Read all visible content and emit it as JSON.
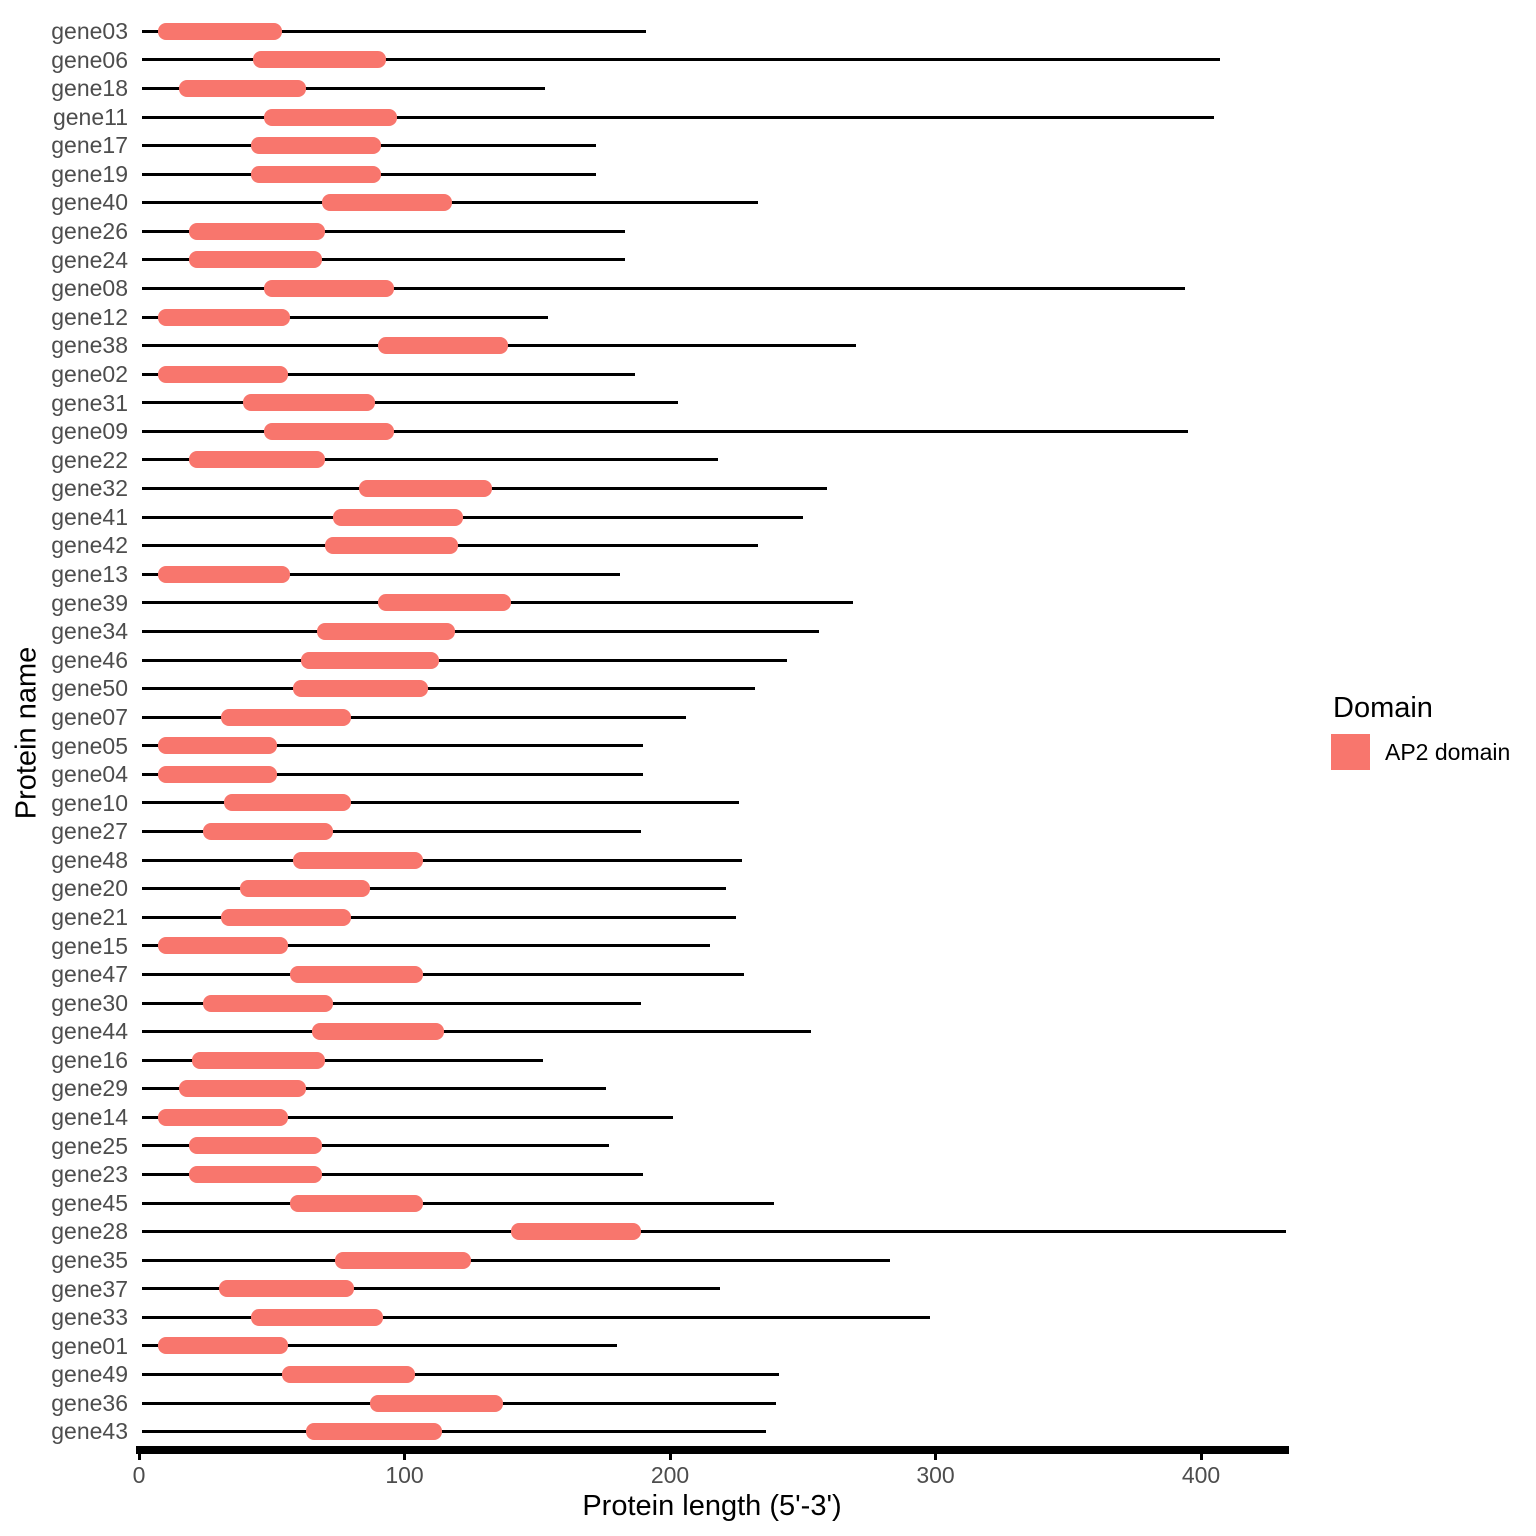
{
  "chart_data": {
    "type": "bar",
    "subtype": "protein-domain-ranges",
    "title": "",
    "xlabel": "Protein length (5'-3')",
    "ylabel": "Protein name",
    "xlim": [
      0,
      432
    ],
    "x_ticks": [
      0,
      100,
      200,
      300,
      400
    ],
    "grid": "off",
    "legend_position": "right",
    "legend_title": "Domain",
    "series": [
      {
        "name": "AP2 domain",
        "color": "#F8766D"
      }
    ],
    "chain_color": "#000000",
    "axis_line_color": "#000000",
    "axis_text_color": "#4D4D4D",
    "chain_start": 1,
    "proteins": [
      {
        "name": "gene03",
        "length": 191,
        "domain": {
          "name": "AP2 domain",
          "start": 7,
          "end": 54
        }
      },
      {
        "name": "gene06",
        "length": 407,
        "domain": {
          "name": "AP2 domain",
          "start": 43,
          "end": 93
        }
      },
      {
        "name": "gene18",
        "length": 153,
        "domain": {
          "name": "AP2 domain",
          "start": 15,
          "end": 63
        }
      },
      {
        "name": "gene11",
        "length": 405,
        "domain": {
          "name": "AP2 domain",
          "start": 47,
          "end": 97
        }
      },
      {
        "name": "gene17",
        "length": 172,
        "domain": {
          "name": "AP2 domain",
          "start": 42,
          "end": 91
        }
      },
      {
        "name": "gene19",
        "length": 172,
        "domain": {
          "name": "AP2 domain",
          "start": 42,
          "end": 91
        }
      },
      {
        "name": "gene40",
        "length": 233,
        "domain": {
          "name": "AP2 domain",
          "start": 69,
          "end": 118
        }
      },
      {
        "name": "gene26",
        "length": 183,
        "domain": {
          "name": "AP2 domain",
          "start": 19,
          "end": 70
        }
      },
      {
        "name": "gene24",
        "length": 183,
        "domain": {
          "name": "AP2 domain",
          "start": 19,
          "end": 69
        }
      },
      {
        "name": "gene08",
        "length": 394,
        "domain": {
          "name": "AP2 domain",
          "start": 47,
          "end": 96
        }
      },
      {
        "name": "gene12",
        "length": 154,
        "domain": {
          "name": "AP2 domain",
          "start": 7,
          "end": 57
        }
      },
      {
        "name": "gene38",
        "length": 270,
        "domain": {
          "name": "AP2 domain",
          "start": 90,
          "end": 139
        }
      },
      {
        "name": "gene02",
        "length": 187,
        "domain": {
          "name": "AP2 domain",
          "start": 7,
          "end": 56
        }
      },
      {
        "name": "gene31",
        "length": 203,
        "domain": {
          "name": "AP2 domain",
          "start": 39,
          "end": 89
        }
      },
      {
        "name": "gene09",
        "length": 395,
        "domain": {
          "name": "AP2 domain",
          "start": 47,
          "end": 96
        }
      },
      {
        "name": "gene22",
        "length": 218,
        "domain": {
          "name": "AP2 domain",
          "start": 19,
          "end": 70
        }
      },
      {
        "name": "gene32",
        "length": 259,
        "domain": {
          "name": "AP2 domain",
          "start": 83,
          "end": 133
        }
      },
      {
        "name": "gene41",
        "length": 250,
        "domain": {
          "name": "AP2 domain",
          "start": 73,
          "end": 122
        }
      },
      {
        "name": "gene42",
        "length": 233,
        "domain": {
          "name": "AP2 domain",
          "start": 70,
          "end": 120
        }
      },
      {
        "name": "gene13",
        "length": 181,
        "domain": {
          "name": "AP2 domain",
          "start": 7,
          "end": 57
        }
      },
      {
        "name": "gene39",
        "length": 269,
        "domain": {
          "name": "AP2 domain",
          "start": 90,
          "end": 140
        }
      },
      {
        "name": "gene34",
        "length": 256,
        "domain": {
          "name": "AP2 domain",
          "start": 67,
          "end": 119
        }
      },
      {
        "name": "gene46",
        "length": 244,
        "domain": {
          "name": "AP2 domain",
          "start": 61,
          "end": 113
        }
      },
      {
        "name": "gene50",
        "length": 232,
        "domain": {
          "name": "AP2 domain",
          "start": 58,
          "end": 109
        }
      },
      {
        "name": "gene07",
        "length": 206,
        "domain": {
          "name": "AP2 domain",
          "start": 31,
          "end": 80
        }
      },
      {
        "name": "gene05",
        "length": 190,
        "domain": {
          "name": "AP2 domain",
          "start": 7,
          "end": 52
        }
      },
      {
        "name": "gene04",
        "length": 190,
        "domain": {
          "name": "AP2 domain",
          "start": 7,
          "end": 52
        }
      },
      {
        "name": "gene10",
        "length": 226,
        "domain": {
          "name": "AP2 domain",
          "start": 32,
          "end": 80
        }
      },
      {
        "name": "gene27",
        "length": 189,
        "domain": {
          "name": "AP2 domain",
          "start": 24,
          "end": 73
        }
      },
      {
        "name": "gene48",
        "length": 227,
        "domain": {
          "name": "AP2 domain",
          "start": 58,
          "end": 107
        }
      },
      {
        "name": "gene20",
        "length": 221,
        "domain": {
          "name": "AP2 domain",
          "start": 38,
          "end": 87
        }
      },
      {
        "name": "gene21",
        "length": 225,
        "domain": {
          "name": "AP2 domain",
          "start": 31,
          "end": 80
        }
      },
      {
        "name": "gene15",
        "length": 215,
        "domain": {
          "name": "AP2 domain",
          "start": 7,
          "end": 56
        }
      },
      {
        "name": "gene47",
        "length": 228,
        "domain": {
          "name": "AP2 domain",
          "start": 57,
          "end": 107
        }
      },
      {
        "name": "gene30",
        "length": 189,
        "domain": {
          "name": "AP2 domain",
          "start": 24,
          "end": 73
        }
      },
      {
        "name": "gene44",
        "length": 253,
        "domain": {
          "name": "AP2 domain",
          "start": 65,
          "end": 115
        }
      },
      {
        "name": "gene16",
        "length": 152,
        "domain": {
          "name": "AP2 domain",
          "start": 20,
          "end": 70
        }
      },
      {
        "name": "gene29",
        "length": 176,
        "domain": {
          "name": "AP2 domain",
          "start": 15,
          "end": 63
        }
      },
      {
        "name": "gene14",
        "length": 201,
        "domain": {
          "name": "AP2 domain",
          "start": 7,
          "end": 56
        }
      },
      {
        "name": "gene25",
        "length": 177,
        "domain": {
          "name": "AP2 domain",
          "start": 19,
          "end": 69
        }
      },
      {
        "name": "gene23",
        "length": 190,
        "domain": {
          "name": "AP2 domain",
          "start": 19,
          "end": 69
        }
      },
      {
        "name": "gene45",
        "length": 239,
        "domain": {
          "name": "AP2 domain",
          "start": 57,
          "end": 107
        }
      },
      {
        "name": "gene28",
        "length": 432,
        "domain": {
          "name": "AP2 domain",
          "start": 140,
          "end": 189
        }
      },
      {
        "name": "gene35",
        "length": 283,
        "domain": {
          "name": "AP2 domain",
          "start": 74,
          "end": 125
        }
      },
      {
        "name": "gene37",
        "length": 219,
        "domain": {
          "name": "AP2 domain",
          "start": 30,
          "end": 81
        }
      },
      {
        "name": "gene33",
        "length": 298,
        "domain": {
          "name": "AP2 domain",
          "start": 42,
          "end": 92
        }
      },
      {
        "name": "gene01",
        "length": 180,
        "domain": {
          "name": "AP2 domain",
          "start": 7,
          "end": 56
        }
      },
      {
        "name": "gene49",
        "length": 241,
        "domain": {
          "name": "AP2 domain",
          "start": 54,
          "end": 104
        }
      },
      {
        "name": "gene36",
        "length": 240,
        "domain": {
          "name": "AP2 domain",
          "start": 87,
          "end": 137
        }
      },
      {
        "name": "gene43",
        "length": 236,
        "domain": {
          "name": "AP2 domain",
          "start": 63,
          "end": 114
        }
      }
    ]
  }
}
